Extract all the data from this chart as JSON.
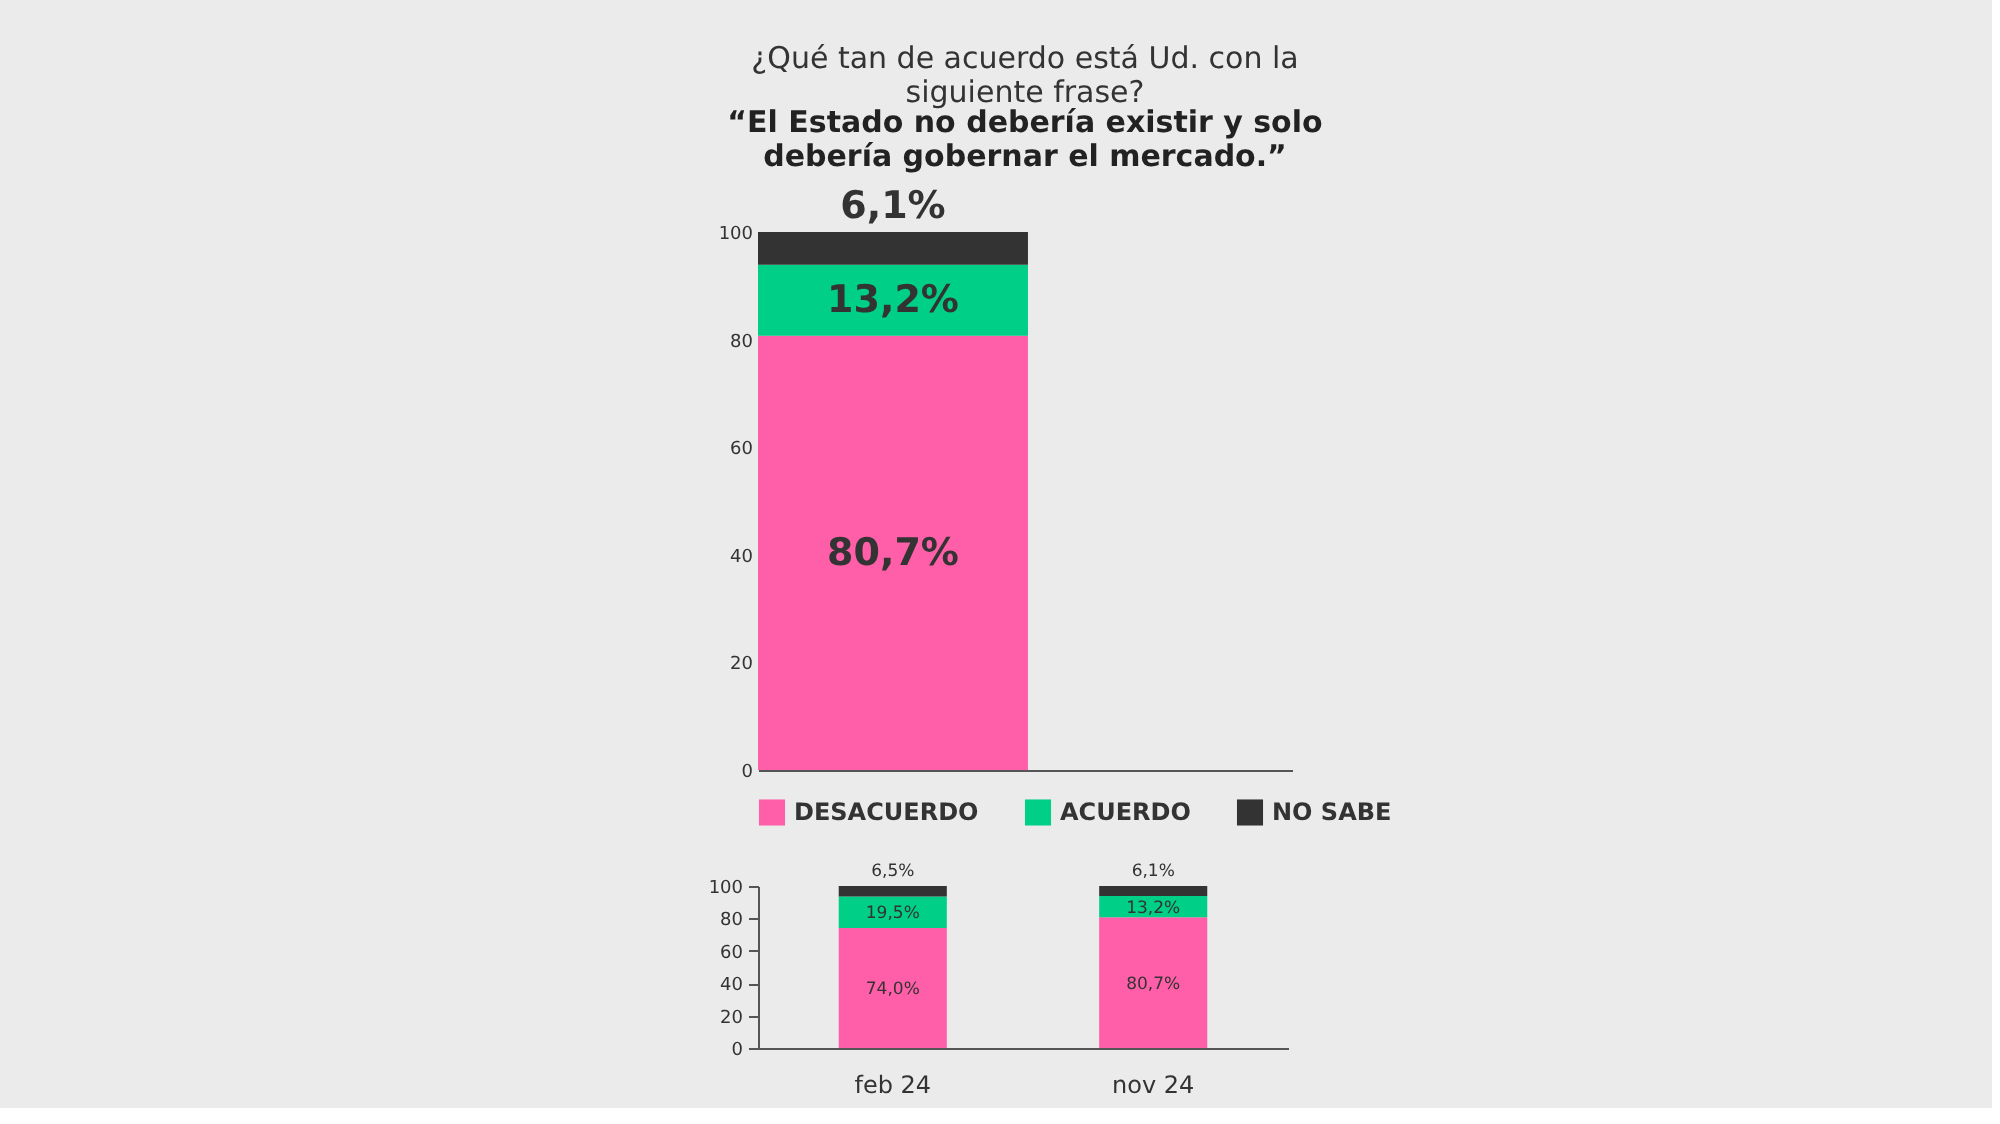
{
  "chart_data": [
    {
      "type": "bar",
      "title": "¿Qué tan de acuerdo está Ud. con la siguiente frase?",
      "subtitle": "“El Estado no debería existir y solo debería gobernar el mercado.”",
      "categories": [
        null
      ],
      "stacked": true,
      "series": [
        {
          "name": "DESACUERDO",
          "color": "#ff5ea8",
          "values": [
            80.7
          ],
          "value_labels": [
            "80,7%"
          ]
        },
        {
          "name": "ACUERDO",
          "color": "#00cf88",
          "values": [
            13.2
          ],
          "value_labels": [
            "13,2%"
          ]
        },
        {
          "name": "NO SABE",
          "color": "#333333",
          "values": [
            6.1
          ],
          "value_labels": [
            "6,1%"
          ]
        }
      ],
      "ylim": [
        0,
        100
      ],
      "yticks": [
        0,
        20,
        40,
        60,
        80,
        100
      ],
      "tick_labels": "y",
      "legend": "bottom"
    },
    {
      "type": "bar",
      "categories": [
        "feb 24",
        "nov 24"
      ],
      "stacked": true,
      "series": [
        {
          "color": "#ff5ea8",
          "values": [
            74.0,
            80.7
          ],
          "value_labels": [
            "74,0%",
            "80,7%"
          ]
        },
        {
          "color": "#00cf88",
          "values": [
            19.5,
            13.2
          ],
          "value_labels": [
            "19,5%",
            "13,2%"
          ]
        },
        {
          "color": "#333333",
          "values": [
            6.5,
            6.1
          ],
          "value_labels": [
            "6,5%",
            "6,1%"
          ]
        }
      ],
      "ylim": [
        0,
        100
      ],
      "yticks": [
        0,
        20,
        40,
        60,
        80,
        100
      ]
    }
  ]
}
